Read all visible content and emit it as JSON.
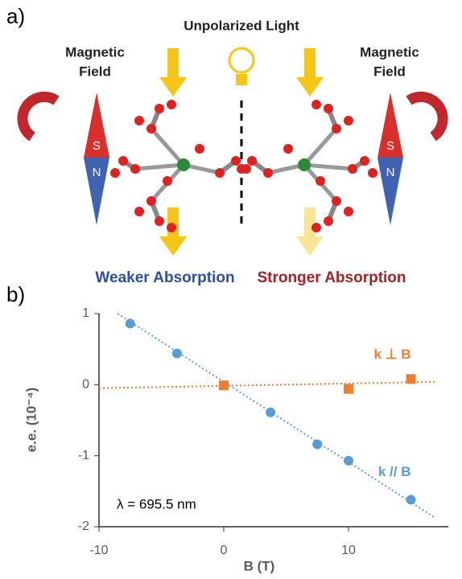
{
  "panel_a": {
    "label": "a)",
    "light": "Unpolarized Light",
    "left_field": [
      "Magnetic",
      "Field"
    ],
    "right_field": [
      "Magnetic",
      "Field"
    ],
    "left_poles": [
      "S",
      "N"
    ],
    "right_poles": [
      "S",
      "N"
    ],
    "weaker": "Weaker Absorption",
    "stronger": "Stronger Absorption"
  },
  "panel_b_label": "b)",
  "chart_data": {
    "type": "scatter",
    "x_label": "B (T)",
    "y_label": "e.e. (10⁻⁴)",
    "annotation": "λ = 695.5 nm",
    "xlim": [
      -10,
      18
    ],
    "ylim": [
      -2,
      1
    ],
    "xticks": [
      -10,
      0,
      10
    ],
    "yticks": [
      -2,
      -1,
      0,
      1
    ],
    "series": [
      {
        "name": "k // B",
        "color": "#5b9bd5",
        "marker": "circle",
        "x": [
          -7.5,
          -3.75,
          3.75,
          7.5,
          10,
          15
        ],
        "values": [
          0.86,
          0.44,
          -0.39,
          -0.84,
          -1.07,
          -1.62
        ],
        "fit": {
          "x": [
            -8.5,
            17
          ],
          "values": [
            1,
            -1.88
          ]
        }
      },
      {
        "name": "k ⊥ B",
        "color": "#ed7d31",
        "marker": "square",
        "x": [
          0,
          10,
          15
        ],
        "values": [
          -0.01,
          -0.06,
          0.08
        ],
        "fit": {
          "x": [
            -10,
            17
          ],
          "values": [
            -0.05,
            0.04
          ]
        }
      }
    ]
  }
}
